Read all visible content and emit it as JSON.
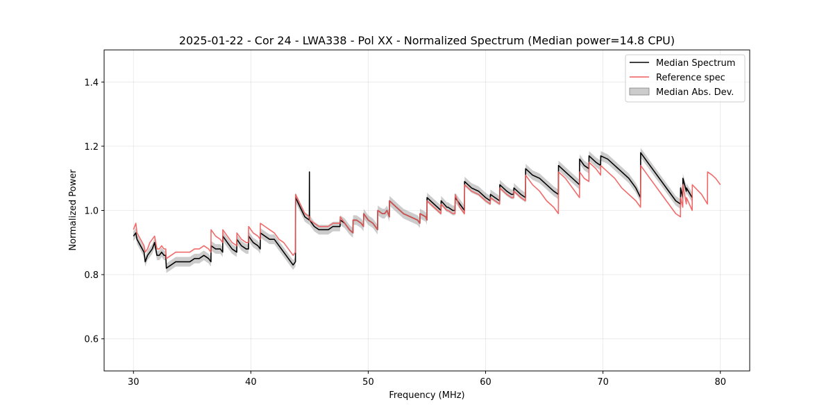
{
  "chart_data": {
    "type": "line",
    "title": "2025-01-22 - Cor 24 - LWA338 - Pol XX - Normalized Spectrum (Median power=14.8 CPU)",
    "xlabel": "Frequency (MHz)",
    "ylabel": "Normalized Power",
    "xlim": [
      27.5,
      82.5
    ],
    "ylim": [
      0.5,
      1.5
    ],
    "xticks": [
      30,
      40,
      50,
      60,
      70,
      80
    ],
    "yticks": [
      0.6,
      0.8,
      1.0,
      1.2,
      1.4
    ],
    "xtick_labels": [
      "30",
      "40",
      "50",
      "60",
      "70",
      "80"
    ],
    "ytick_labels": [
      "0.6",
      "0.8",
      "1.0",
      "1.2",
      "1.4"
    ],
    "grid": true,
    "legend_position": "top-right",
    "series": [
      {
        "name": "Median Spectrum",
        "color": "#000000",
        "x": [
          30.0,
          30.2,
          30.3,
          30.45,
          30.6,
          30.75,
          30.9,
          31.0,
          31.2,
          31.4,
          31.6,
          31.8,
          32.0,
          32.2,
          32.4,
          32.6,
          32.75,
          32.8,
          33.2,
          33.6,
          34.0,
          34.4,
          34.8,
          35.2,
          35.6,
          36.0,
          36.4,
          36.6,
          36.61,
          37.0,
          37.4,
          37.6,
          37.61,
          38.0,
          38.4,
          38.8,
          38.81,
          39.2,
          39.6,
          39.8,
          39.81,
          40.2,
          40.6,
          40.8,
          40.81,
          41.2,
          41.6,
          42.0,
          42.4,
          42.8,
          43.2,
          43.6,
          43.8,
          43.81,
          44.2,
          44.6,
          44.98,
          44.99,
          45.0,
          45.01,
          45.4,
          45.8,
          46.2,
          46.6,
          47.0,
          47.4,
          47.6,
          47.61,
          48.0,
          48.4,
          48.7,
          48.71,
          49.0,
          49.4,
          49.6,
          49.61,
          50.0,
          50.4,
          50.8,
          50.81,
          51.2,
          51.4,
          51.6,
          51.8,
          51.81,
          52.4,
          53.0,
          53.6,
          54.2,
          54.4,
          54.41,
          54.9,
          55.0,
          55.01,
          55.6,
          55.9,
          56.2,
          56.21,
          56.7,
          56.8,
          57.2,
          57.4,
          57.41,
          57.8,
          58.2,
          58.21,
          58.8,
          59.4,
          60.0,
          60.4,
          60.41,
          60.8,
          61.2,
          61.21,
          61.8,
          62.2,
          62.4,
          62.41,
          63.0,
          63.4,
          63.41,
          64.0,
          64.6,
          65.2,
          65.8,
          66.2,
          66.21,
          66.8,
          67.4,
          68.0,
          68.01,
          68.4,
          68.8,
          68.81,
          69.4,
          69.8,
          69.81,
          70.4,
          71.0,
          71.6,
          72.2,
          72.8,
          73.2,
          73.21,
          73.8,
          74.4,
          75.0,
          75.6,
          76.2,
          76.6,
          76.61,
          76.8,
          76.81,
          77.1,
          77.11,
          77.6
        ],
        "values": [
          0.92,
          0.93,
          0.91,
          0.9,
          0.89,
          0.88,
          0.87,
          0.84,
          0.86,
          0.87,
          0.88,
          0.9,
          0.86,
          0.86,
          0.87,
          0.86,
          0.86,
          0.82,
          0.83,
          0.84,
          0.84,
          0.84,
          0.84,
          0.85,
          0.85,
          0.86,
          0.85,
          0.84,
          0.89,
          0.88,
          0.88,
          0.87,
          0.92,
          0.9,
          0.88,
          0.87,
          0.91,
          0.89,
          0.88,
          0.88,
          0.92,
          0.9,
          0.89,
          0.88,
          0.93,
          0.92,
          0.91,
          0.91,
          0.89,
          0.87,
          0.85,
          0.83,
          0.84,
          1.04,
          1.01,
          0.98,
          0.97,
          1.12,
          0.97,
          0.97,
          0.95,
          0.94,
          0.94,
          0.94,
          0.95,
          0.95,
          0.95,
          0.97,
          0.96,
          0.94,
          0.93,
          0.97,
          0.97,
          0.96,
          0.95,
          0.99,
          0.97,
          0.96,
          0.94,
          1.0,
          0.99,
          0.99,
          1.0,
          0.98,
          1.03,
          1.01,
          0.99,
          0.98,
          0.97,
          0.96,
          0.99,
          0.98,
          0.97,
          1.04,
          1.02,
          1.01,
          1.0,
          1.03,
          1.01,
          1.01,
          1.0,
          1.0,
          1.04,
          1.02,
          1.0,
          1.09,
          1.07,
          1.06,
          1.04,
          1.03,
          1.05,
          1.04,
          1.03,
          1.08,
          1.06,
          1.05,
          1.05,
          1.07,
          1.05,
          1.04,
          1.13,
          1.11,
          1.1,
          1.08,
          1.06,
          1.05,
          1.14,
          1.12,
          1.1,
          1.08,
          1.16,
          1.14,
          1.13,
          1.17,
          1.15,
          1.14,
          1.17,
          1.16,
          1.14,
          1.12,
          1.1,
          1.07,
          1.04,
          1.18,
          1.15,
          1.12,
          1.09,
          1.06,
          1.03,
          1.02,
          1.07,
          1.04,
          1.1,
          1.06,
          1.07,
          1.04
        ],
        "mad_width": 0.015
      },
      {
        "name": "Reference spec",
        "color": "#f05a5a",
        "x": [
          30.0,
          30.2,
          30.3,
          30.45,
          30.6,
          30.75,
          30.9,
          31.0,
          31.2,
          31.4,
          31.6,
          31.8,
          32.0,
          32.2,
          32.4,
          32.6,
          32.75,
          32.8,
          33.2,
          33.6,
          34.0,
          34.4,
          34.8,
          35.2,
          35.6,
          36.0,
          36.4,
          36.6,
          36.61,
          37.0,
          37.4,
          37.6,
          37.61,
          38.0,
          38.4,
          38.8,
          38.81,
          39.2,
          39.6,
          39.8,
          39.81,
          40.2,
          40.6,
          40.8,
          40.81,
          41.2,
          41.6,
          42.0,
          42.4,
          42.8,
          43.2,
          43.6,
          43.8,
          43.81,
          44.2,
          44.6,
          45.0,
          45.01,
          45.4,
          45.8,
          46.2,
          46.6,
          47.0,
          47.4,
          47.6,
          47.61,
          48.0,
          48.4,
          48.7,
          48.71,
          49.0,
          49.4,
          49.6,
          49.61,
          50.0,
          50.4,
          50.8,
          50.81,
          51.2,
          51.4,
          51.6,
          51.8,
          51.81,
          52.4,
          53.0,
          53.6,
          54.2,
          54.4,
          54.41,
          54.9,
          55.0,
          55.01,
          55.6,
          55.9,
          56.2,
          56.21,
          56.7,
          56.8,
          57.2,
          57.4,
          57.41,
          57.8,
          58.2,
          58.21,
          58.8,
          59.4,
          60.0,
          60.4,
          60.41,
          60.8,
          61.2,
          61.21,
          61.8,
          62.2,
          62.4,
          62.41,
          63.0,
          63.4,
          63.41,
          64.0,
          64.6,
          65.2,
          65.8,
          66.2,
          66.21,
          66.8,
          67.4,
          68.0,
          68.01,
          68.4,
          68.8,
          68.81,
          69.4,
          69.8,
          69.81,
          70.4,
          71.0,
          71.6,
          72.2,
          72.8,
          73.2,
          73.21,
          73.8,
          74.4,
          75.0,
          75.6,
          76.2,
          76.6,
          76.61,
          76.8,
          76.81,
          77.1,
          77.11,
          77.6,
          77.61,
          78.4,
          78.9,
          78.91,
          79.3,
          79.6,
          80.0
        ],
        "values": [
          0.94,
          0.96,
          0.93,
          0.92,
          0.91,
          0.9,
          0.89,
          0.87,
          0.88,
          0.9,
          0.91,
          0.92,
          0.88,
          0.88,
          0.89,
          0.88,
          0.88,
          0.85,
          0.86,
          0.87,
          0.87,
          0.87,
          0.87,
          0.88,
          0.88,
          0.89,
          0.88,
          0.87,
          0.94,
          0.92,
          0.91,
          0.9,
          0.94,
          0.92,
          0.9,
          0.89,
          0.93,
          0.91,
          0.9,
          0.9,
          0.95,
          0.93,
          0.92,
          0.91,
          0.96,
          0.95,
          0.94,
          0.93,
          0.91,
          0.9,
          0.88,
          0.86,
          0.87,
          1.05,
          1.02,
          0.99,
          0.98,
          0.97,
          0.96,
          0.95,
          0.95,
          0.95,
          0.96,
          0.96,
          0.96,
          0.98,
          0.96,
          0.94,
          0.93,
          0.97,
          0.97,
          0.96,
          0.95,
          0.99,
          0.97,
          0.96,
          0.94,
          1.0,
          0.99,
          0.99,
          1.0,
          0.98,
          1.03,
          1.01,
          0.99,
          0.98,
          0.97,
          0.96,
          0.99,
          0.98,
          0.97,
          1.03,
          1.01,
          1.0,
          0.99,
          1.02,
          1.0,
          1.0,
          0.99,
          0.99,
          1.05,
          1.01,
          0.99,
          1.08,
          1.06,
          1.05,
          1.03,
          1.02,
          1.04,
          1.03,
          1.02,
          1.07,
          1.05,
          1.04,
          1.04,
          1.06,
          1.04,
          1.03,
          1.11,
          1.08,
          1.06,
          1.03,
          1.01,
          0.99,
          1.12,
          1.1,
          1.07,
          1.04,
          1.12,
          1.1,
          1.09,
          1.15,
          1.13,
          1.11,
          1.14,
          1.12,
          1.1,
          1.07,
          1.05,
          1.03,
          1.01,
          1.14,
          1.11,
          1.08,
          1.05,
          1.02,
          0.99,
          0.98,
          1.04,
          1.01,
          1.08,
          1.02,
          1.04,
          1.0,
          1.08,
          1.05,
          1.02,
          1.12,
          1.11,
          1.1,
          1.08
        ]
      },
      {
        "name": "Median Abs. Dev.",
        "color": "#808080",
        "fill_opacity": 0.4,
        "type": "band"
      }
    ]
  }
}
